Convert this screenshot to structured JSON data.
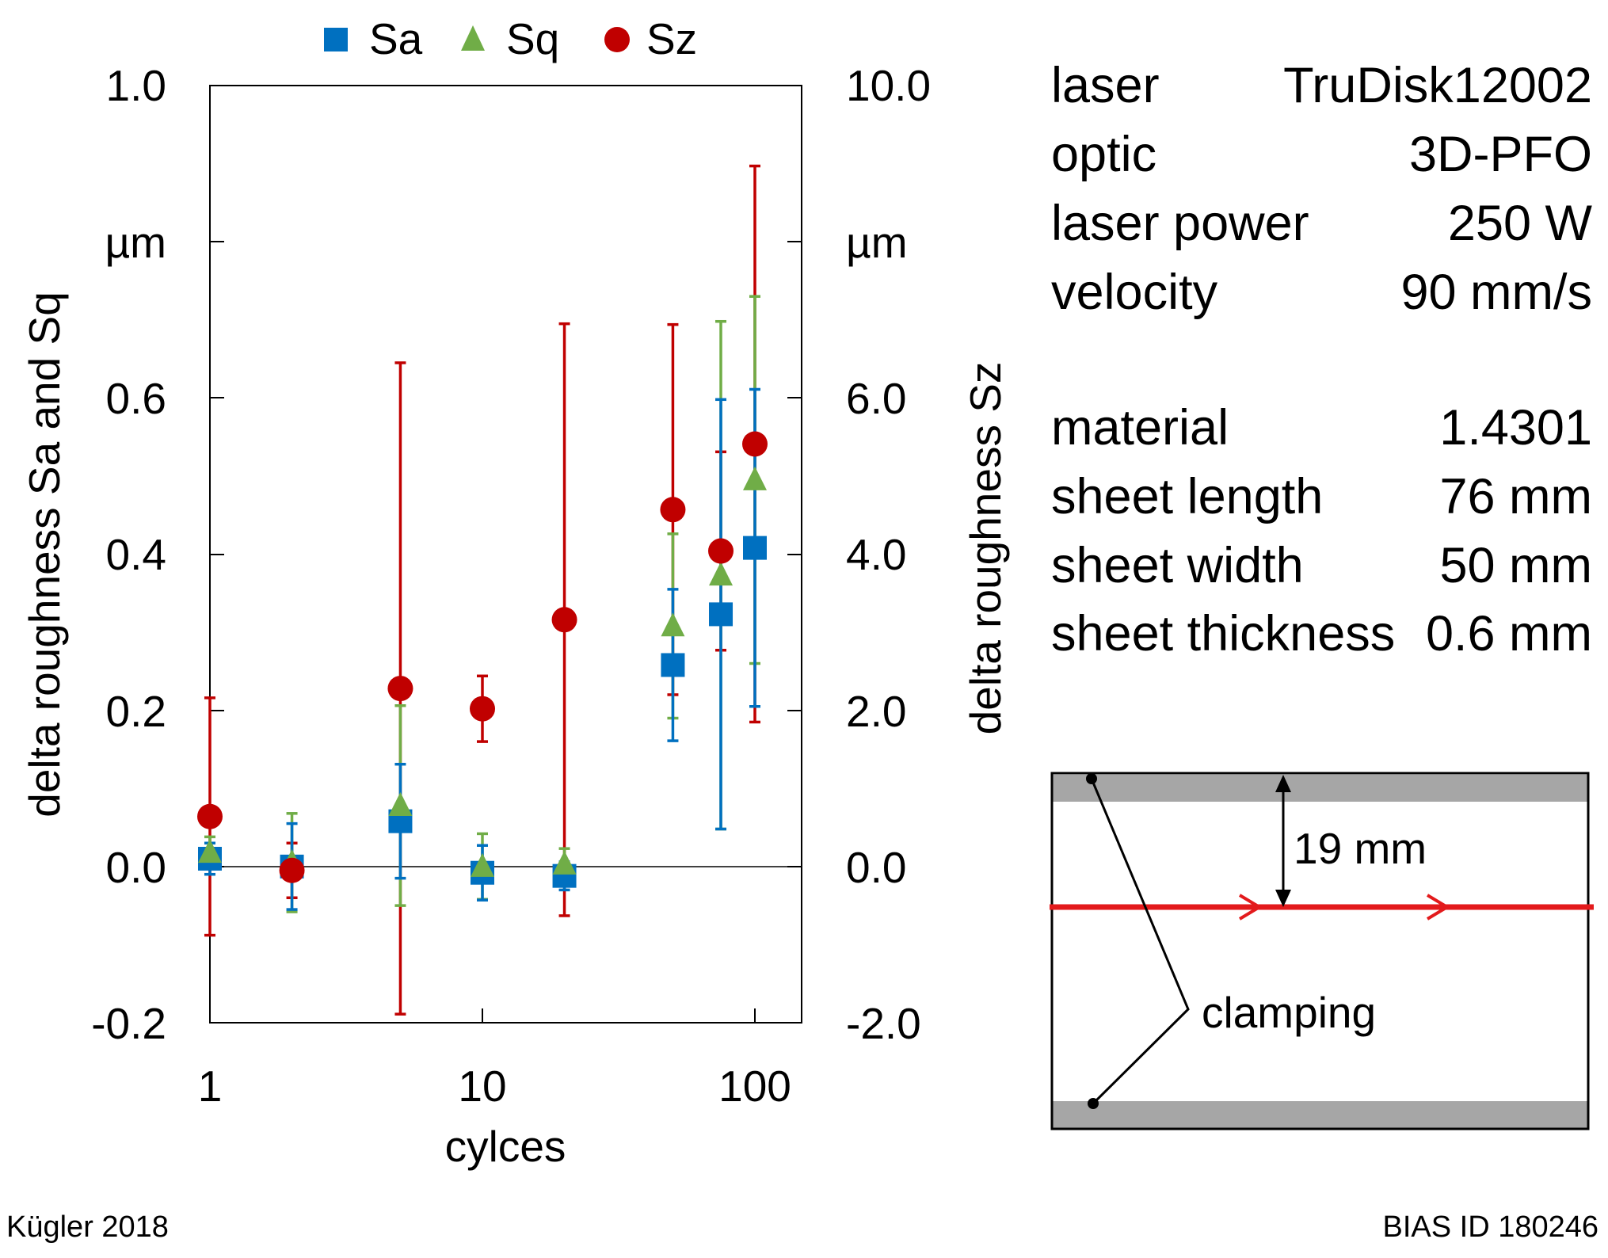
{
  "chart_data": {
    "type": "scatter",
    "x_scale": "log",
    "xlabel": "cylces",
    "x_ticks": [
      1,
      10,
      100
    ],
    "x_tick_labels": [
      "1",
      "10",
      "100"
    ],
    "x_range": [
      1,
      150
    ],
    "left_axis": {
      "label": "delta roughness Sa and Sq",
      "unit": "µm",
      "range": [
        -0.2,
        1.0
      ],
      "ticks": [
        -0.2,
        0.0,
        0.2,
        0.4,
        0.6,
        0.8,
        1.0
      ],
      "tick_labels": [
        "-0.2",
        "0.0",
        "0.2",
        "0.4",
        "0.6",
        "1.0"
      ]
    },
    "right_axis": {
      "label": "delta roughness Sz",
      "unit": "µm",
      "range": [
        -2.0,
        10.0
      ],
      "ticks": [
        -2.0,
        0.0,
        2.0,
        4.0,
        6.0,
        8.0,
        10.0
      ],
      "tick_labels": [
        "-2.0",
        "0.0",
        "2.0",
        "4.0",
        "6.0",
        "10.0"
      ]
    },
    "legend": [
      "Sa",
      "Sq",
      "Sz"
    ],
    "legend_position": "top",
    "series": [
      {
        "name": "Sa",
        "axis": "left",
        "marker": "square",
        "color": "#0070c0",
        "x": [
          1,
          2,
          5,
          10,
          20,
          50,
          75,
          100
        ],
        "y": [
          0.01,
          0.0,
          0.058,
          -0.008,
          -0.012,
          0.258,
          0.323,
          0.408
        ],
        "err": [
          0.02,
          0.055,
          0.073,
          0.035,
          0.018,
          0.097,
          0.275,
          0.203
        ]
      },
      {
        "name": "Sq",
        "axis": "left",
        "marker": "triangle",
        "color": "#70ad47",
        "x": [
          1,
          2,
          5,
          10,
          20,
          50,
          75,
          100
        ],
        "y": [
          0.018,
          0.005,
          0.078,
          0.0,
          0.003,
          0.308,
          0.373,
          0.495
        ],
        "err": [
          0.02,
          0.063,
          0.128,
          0.042,
          0.02,
          0.118,
          0.325,
          0.235
        ]
      },
      {
        "name": "Sz",
        "axis": "right",
        "marker": "circle",
        "color": "#c00000",
        "x": [
          1,
          2,
          5,
          10,
          20,
          50,
          75,
          100
        ],
        "y": [
          0.64,
          -0.05,
          2.28,
          2.02,
          3.16,
          4.57,
          4.04,
          5.41
        ],
        "err": [
          1.52,
          0.35,
          4.17,
          0.42,
          3.79,
          2.37,
          1.27,
          3.56
        ]
      }
    ]
  },
  "parameters": [
    {
      "key": "laser",
      "value": "TruDisk12002"
    },
    {
      "key": "optic",
      "value": "3D-PFO"
    },
    {
      "key": "laser power",
      "value": "250 W"
    },
    {
      "key": "velocity",
      "value": "90 mm/s"
    },
    {
      "key": "material",
      "value": "1.4301"
    },
    {
      "key": "sheet length",
      "value": "76 mm"
    },
    {
      "key": "sheet width",
      "value": "50 mm"
    },
    {
      "key": "sheet thickness",
      "value": "0.6 mm"
    }
  ],
  "diagram": {
    "distance_label": "19 mm",
    "clamping_label": "clamping",
    "track_color": "#e31a1c",
    "clamp_color": "#a6a6a6"
  },
  "footer": {
    "author": "Kügler 2018",
    "id": "BIAS ID 180246"
  }
}
